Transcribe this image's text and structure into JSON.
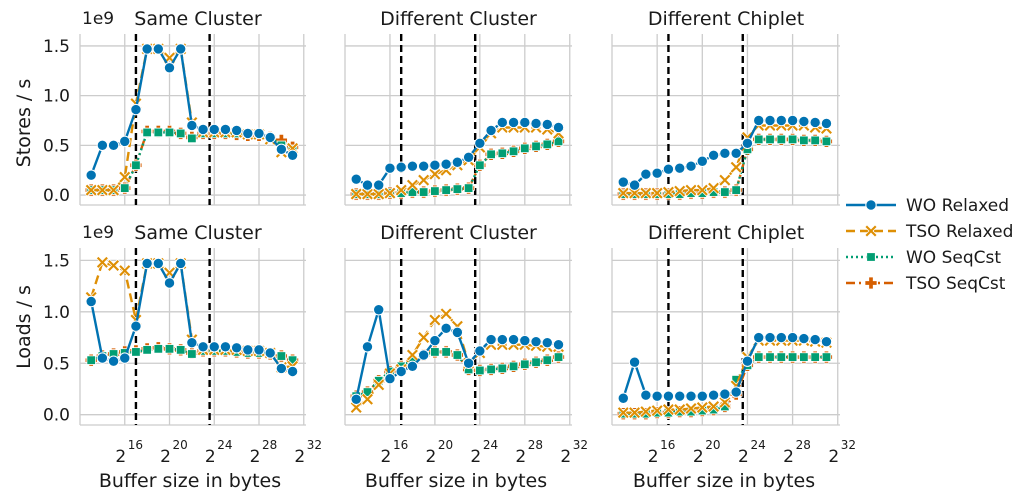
{
  "figure": {
    "xlabel": "Buffer size in bytes",
    "row_ylabels": [
      "Stores / s",
      "Loads / s"
    ],
    "y_offset_label": "1e9",
    "x_tick_base": "2",
    "x_tick_exponents": [
      "16",
      "20",
      "24",
      "28",
      "32"
    ],
    "y_tick_labels": [
      "0.0",
      "0.5",
      "1.0",
      "1.5"
    ],
    "panel_titles": [
      "Same Cluster",
      "Different Cluster",
      "Different Chiplet"
    ]
  },
  "colors": {
    "WO Relaxed": "#0173b2",
    "TSO Relaxed": "#de8f05",
    "WO SeqCst": "#029e73",
    "TSO SeqCst": "#d55e00",
    "grid": "#cccccc",
    "vline": "#000000"
  },
  "legend": [
    {
      "name": "WO Relaxed",
      "marker": "circle",
      "dash": "solid"
    },
    {
      "name": "TSO Relaxed",
      "marker": "x",
      "dash": "dashed"
    },
    {
      "name": "WO SeqCst",
      "marker": "square",
      "dash": "dotted"
    },
    {
      "name": "TSO SeqCst",
      "marker": "plus",
      "dash": "dashdot"
    }
  ],
  "chart_data": [
    {
      "type": "line",
      "title": "Same Cluster",
      "ylabel": "Stores / s",
      "xlabel": "",
      "x_scale": "log2",
      "x_unit": "bytes",
      "ylim": [
        0,
        1600000000.0
      ],
      "y_multiplier": "1e9",
      "vlines": [
        131072,
        12582912
      ],
      "grid": true,
      "x": [
        8192,
        16384,
        32768,
        65536,
        131072,
        262144,
        524288,
        1048576,
        2097152,
        4194304,
        8388608,
        16777216,
        33554432,
        67108864,
        134217728,
        268435456,
        536870912,
        1073741824,
        2147483648
      ],
      "series": [
        {
          "name": "WO Relaxed",
          "values": [
            200000000.0,
            500000000.0,
            500000000.0,
            540000000.0,
            860000000.0,
            1470000000.0,
            1470000000.0,
            1280000000.0,
            1470000000.0,
            700000000.0,
            660000000.0,
            660000000.0,
            660000000.0,
            650000000.0,
            620000000.0,
            620000000.0,
            580000000.0,
            460000000.0,
            400000000.0
          ]
        },
        {
          "name": "TSO Relaxed",
          "values": [
            50000000.0,
            50000000.0,
            50000000.0,
            180000000.0,
            920000000.0,
            1470000000.0,
            1470000000.0,
            1380000000.0,
            1470000000.0,
            730000000.0,
            630000000.0,
            630000000.0,
            630000000.0,
            630000000.0,
            610000000.0,
            610000000.0,
            560000000.0,
            430000000.0,
            470000000.0
          ]
        },
        {
          "name": "WO SeqCst",
          "values": [
            50000000.0,
            50000000.0,
            50000000.0,
            70000000.0,
            300000000.0,
            630000000.0,
            630000000.0,
            630000000.0,
            620000000.0,
            570000000.0,
            620000000.0,
            620000000.0,
            620000000.0,
            620000000.0,
            610000000.0,
            610000000.0,
            580000000.0,
            500000000.0,
            460000000.0
          ]
        },
        {
          "name": "TSO SeqCst",
          "values": [
            50000000.0,
            50000000.0,
            50000000.0,
            70000000.0,
            300000000.0,
            640000000.0,
            640000000.0,
            640000000.0,
            620000000.0,
            580000000.0,
            620000000.0,
            620000000.0,
            620000000.0,
            610000000.0,
            600000000.0,
            600000000.0,
            580000000.0,
            550000000.0,
            480000000.0
          ]
        }
      ]
    },
    {
      "type": "line",
      "title": "Different Cluster",
      "ylabel": "",
      "xlabel": "",
      "x_scale": "log2",
      "x_unit": "bytes",
      "ylim": [
        0,
        1600000000.0
      ],
      "y_multiplier": "1e9",
      "vlines": [
        131072,
        12582912
      ],
      "grid": true,
      "x": [
        8192,
        16384,
        32768,
        65536,
        131072,
        262144,
        524288,
        1048576,
        2097152,
        4194304,
        8388608,
        16777216,
        33554432,
        67108864,
        134217728,
        268435456,
        536870912,
        1073741824,
        2147483648
      ],
      "series": [
        {
          "name": "WO Relaxed",
          "values": [
            160000000.0,
            100000000.0,
            100000000.0,
            270000000.0,
            280000000.0,
            290000000.0,
            290000000.0,
            300000000.0,
            310000000.0,
            330000000.0,
            380000000.0,
            520000000.0,
            650000000.0,
            730000000.0,
            730000000.0,
            730000000.0,
            720000000.0,
            710000000.0,
            680000000.0
          ]
        },
        {
          "name": "TSO Relaxed",
          "values": [
            10000000.0,
            10000000.0,
            10000000.0,
            20000000.0,
            50000000.0,
            100000000.0,
            150000000.0,
            210000000.0,
            250000000.0,
            300000000.0,
            350000000.0,
            480000000.0,
            620000000.0,
            680000000.0,
            680000000.0,
            680000000.0,
            680000000.0,
            660000000.0,
            620000000.0
          ]
        },
        {
          "name": "WO SeqCst",
          "values": [
            10000000.0,
            10000000.0,
            10000000.0,
            20000000.0,
            20000000.0,
            30000000.0,
            30000000.0,
            40000000.0,
            50000000.0,
            60000000.0,
            70000000.0,
            300000000.0,
            410000000.0,
            420000000.0,
            440000000.0,
            470000000.0,
            490000000.0,
            510000000.0,
            540000000.0
          ]
        },
        {
          "name": "TSO SeqCst",
          "values": [
            10000000.0,
            10000000.0,
            10000000.0,
            20000000.0,
            20000000.0,
            30000000.0,
            30000000.0,
            40000000.0,
            50000000.0,
            60000000.0,
            70000000.0,
            300000000.0,
            410000000.0,
            420000000.0,
            440000000.0,
            470000000.0,
            490000000.0,
            510000000.0,
            540000000.0
          ]
        }
      ]
    },
    {
      "type": "line",
      "title": "Different Chiplet",
      "ylabel": "",
      "xlabel": "",
      "x_scale": "log2",
      "x_unit": "bytes",
      "ylim": [
        0,
        1600000000.0
      ],
      "y_multiplier": "1e9",
      "vlines": [
        131072,
        12582912
      ],
      "grid": true,
      "x": [
        8192,
        16384,
        32768,
        65536,
        131072,
        262144,
        524288,
        1048576,
        2097152,
        4194304,
        8388608,
        16777216,
        33554432,
        67108864,
        134217728,
        268435456,
        536870912,
        1073741824,
        2147483648
      ],
      "series": [
        {
          "name": "WO Relaxed",
          "values": [
            130000000.0,
            100000000.0,
            210000000.0,
            220000000.0,
            260000000.0,
            270000000.0,
            290000000.0,
            340000000.0,
            400000000.0,
            420000000.0,
            420000000.0,
            520000000.0,
            750000000.0,
            750000000.0,
            750000000.0,
            750000000.0,
            740000000.0,
            730000000.0,
            720000000.0
          ]
        },
        {
          "name": "TSO Relaxed",
          "values": [
            20000000.0,
            20000000.0,
            20000000.0,
            20000000.0,
            30000000.0,
            40000000.0,
            50000000.0,
            50000000.0,
            70000000.0,
            150000000.0,
            280000000.0,
            580000000.0,
            700000000.0,
            700000000.0,
            700000000.0,
            700000000.0,
            700000000.0,
            680000000.0,
            670000000.0
          ]
        },
        {
          "name": "WO SeqCst",
          "values": [
            10000000.0,
            10000000.0,
            10000000.0,
            10000000.0,
            10000000.0,
            10000000.0,
            20000000.0,
            20000000.0,
            30000000.0,
            30000000.0,
            50000000.0,
            460000000.0,
            560000000.0,
            560000000.0,
            560000000.0,
            560000000.0,
            550000000.0,
            550000000.0,
            540000000.0
          ]
        },
        {
          "name": "TSO SeqCst",
          "values": [
            10000000.0,
            10000000.0,
            10000000.0,
            10000000.0,
            10000000.0,
            10000000.0,
            20000000.0,
            20000000.0,
            30000000.0,
            30000000.0,
            50000000.0,
            460000000.0,
            560000000.0,
            560000000.0,
            560000000.0,
            560000000.0,
            550000000.0,
            550000000.0,
            540000000.0
          ]
        }
      ]
    },
    {
      "type": "line",
      "title": "Same Cluster",
      "ylabel": "Loads / s",
      "xlabel": "",
      "x_scale": "log2",
      "x_unit": "bytes",
      "ylim": [
        0,
        1600000000.0
      ],
      "y_multiplier": "1e9",
      "vlines": [
        131072,
        12582912
      ],
      "grid": true,
      "x": [
        8192,
        16384,
        32768,
        65536,
        131072,
        262144,
        524288,
        1048576,
        2097152,
        4194304,
        8388608,
        16777216,
        33554432,
        67108864,
        134217728,
        268435456,
        536870912,
        1073741824,
        2147483648
      ],
      "series": [
        {
          "name": "WO Relaxed",
          "values": [
            1100000000.0,
            550000000.0,
            520000000.0,
            550000000.0,
            860000000.0,
            1470000000.0,
            1470000000.0,
            1280000000.0,
            1470000000.0,
            700000000.0,
            660000000.0,
            660000000.0,
            660000000.0,
            650000000.0,
            630000000.0,
            630000000.0,
            600000000.0,
            450000000.0,
            420000000.0
          ]
        },
        {
          "name": "TSO Relaxed",
          "values": [
            1140000000.0,
            1480000000.0,
            1450000000.0,
            1400000000.0,
            920000000.0,
            1470000000.0,
            1470000000.0,
            1380000000.0,
            1470000000.0,
            730000000.0,
            630000000.0,
            630000000.0,
            630000000.0,
            630000000.0,
            620000000.0,
            620000000.0,
            600000000.0,
            460000000.0,
            470000000.0
          ]
        },
        {
          "name": "WO SeqCst",
          "values": [
            530000000.0,
            570000000.0,
            590000000.0,
            600000000.0,
            610000000.0,
            630000000.0,
            640000000.0,
            640000000.0,
            630000000.0,
            590000000.0,
            620000000.0,
            620000000.0,
            620000000.0,
            610000000.0,
            600000000.0,
            600000000.0,
            590000000.0,
            570000000.0,
            530000000.0
          ]
        },
        {
          "name": "TSO SeqCst",
          "values": [
            530000000.0,
            570000000.0,
            590000000.0,
            610000000.0,
            620000000.0,
            640000000.0,
            650000000.0,
            640000000.0,
            630000000.0,
            600000000.0,
            620000000.0,
            620000000.0,
            620000000.0,
            610000000.0,
            600000000.0,
            600000000.0,
            590000000.0,
            570000000.0,
            530000000.0
          ]
        }
      ]
    },
    {
      "type": "line",
      "title": "Different Cluster",
      "ylabel": "",
      "xlabel": "",
      "x_scale": "log2",
      "x_unit": "bytes",
      "ylim": [
        0,
        1600000000.0
      ],
      "y_multiplier": "1e9",
      "vlines": [
        131072,
        12582912
      ],
      "grid": true,
      "x": [
        8192,
        16384,
        32768,
        65536,
        131072,
        262144,
        524288,
        1048576,
        2097152,
        4194304,
        8388608,
        16777216,
        33554432,
        67108864,
        134217728,
        268435456,
        536870912,
        1073741824,
        2147483648
      ],
      "series": [
        {
          "name": "WO Relaxed",
          "values": [
            150000000.0,
            660000000.0,
            1020000000.0,
            350000000.0,
            420000000.0,
            470000000.0,
            580000000.0,
            720000000.0,
            840000000.0,
            800000000.0,
            500000000.0,
            620000000.0,
            730000000.0,
            730000000.0,
            730000000.0,
            720000000.0,
            710000000.0,
            700000000.0,
            680000000.0
          ]
        },
        {
          "name": "TSO Relaxed",
          "values": [
            70000000.0,
            150000000.0,
            290000000.0,
            400000000.0,
            440000000.0,
            580000000.0,
            750000000.0,
            920000000.0,
            980000000.0,
            860000000.0,
            500000000.0,
            600000000.0,
            680000000.0,
            680000000.0,
            680000000.0,
            680000000.0,
            670000000.0,
            660000000.0,
            660000000.0
          ]
        },
        {
          "name": "WO SeqCst",
          "values": [
            180000000.0,
            220000000.0,
            330000000.0,
            420000000.0,
            470000000.0,
            530000000.0,
            580000000.0,
            610000000.0,
            610000000.0,
            580000000.0,
            440000000.0,
            430000000.0,
            440000000.0,
            450000000.0,
            470000000.0,
            490000000.0,
            510000000.0,
            530000000.0,
            560000000.0
          ]
        },
        {
          "name": "TSO SeqCst",
          "values": [
            180000000.0,
            220000000.0,
            330000000.0,
            420000000.0,
            470000000.0,
            530000000.0,
            580000000.0,
            610000000.0,
            610000000.0,
            580000000.0,
            440000000.0,
            430000000.0,
            440000000.0,
            450000000.0,
            470000000.0,
            490000000.0,
            510000000.0,
            530000000.0,
            560000000.0
          ]
        }
      ]
    },
    {
      "type": "line",
      "title": "Different Chiplet",
      "ylabel": "",
      "xlabel": "",
      "x_scale": "log2",
      "x_unit": "bytes",
      "ylim": [
        0,
        1600000000.0
      ],
      "y_multiplier": "1e9",
      "vlines": [
        131072,
        12582912
      ],
      "grid": true,
      "x": [
        8192,
        16384,
        32768,
        65536,
        131072,
        262144,
        524288,
        1048576,
        2097152,
        4194304,
        8388608,
        16777216,
        33554432,
        67108864,
        134217728,
        268435456,
        536870912,
        1073741824,
        2147483648
      ],
      "series": [
        {
          "name": "WO Relaxed",
          "values": [
            160000000.0,
            510000000.0,
            190000000.0,
            180000000.0,
            180000000.0,
            180000000.0,
            180000000.0,
            180000000.0,
            190000000.0,
            200000000.0,
            220000000.0,
            520000000.0,
            750000000.0,
            750000000.0,
            750000000.0,
            750000000.0,
            740000000.0,
            730000000.0,
            710000000.0
          ]
        },
        {
          "name": "TSO Relaxed",
          "values": [
            20000000.0,
            20000000.0,
            30000000.0,
            40000000.0,
            50000000.0,
            50000000.0,
            60000000.0,
            70000000.0,
            80000000.0,
            120000000.0,
            280000000.0,
            560000000.0,
            720000000.0,
            720000000.0,
            720000000.0,
            720000000.0,
            720000000.0,
            710000000.0,
            700000000.0
          ]
        },
        {
          "name": "WO SeqCst",
          "values": [
            10000000.0,
            10000000.0,
            10000000.0,
            20000000.0,
            20000000.0,
            30000000.0,
            30000000.0,
            40000000.0,
            50000000.0,
            80000000.0,
            340000000.0,
            480000000.0,
            560000000.0,
            560000000.0,
            560000000.0,
            560000000.0,
            560000000.0,
            560000000.0,
            560000000.0
          ]
        },
        {
          "name": "TSO SeqCst",
          "values": [
            10000000.0,
            10000000.0,
            10000000.0,
            20000000.0,
            20000000.0,
            30000000.0,
            30000000.0,
            40000000.0,
            50000000.0,
            80000000.0,
            200000000.0,
            480000000.0,
            560000000.0,
            560000000.0,
            560000000.0,
            560000000.0,
            560000000.0,
            560000000.0,
            560000000.0
          ]
        }
      ]
    }
  ]
}
